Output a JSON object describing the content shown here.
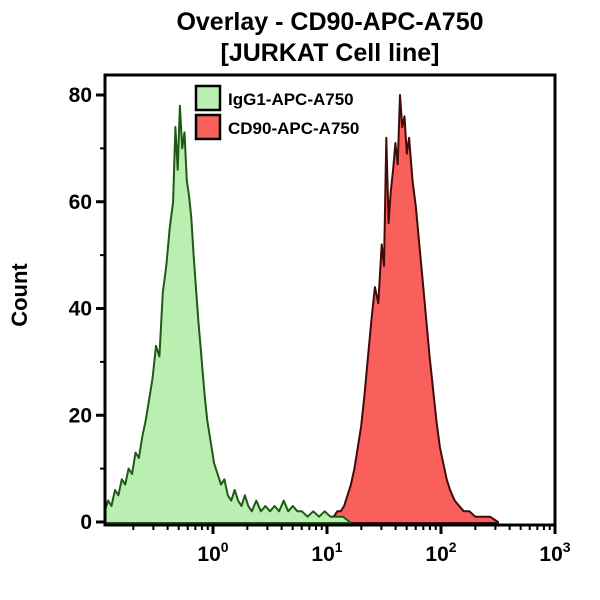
{
  "title": {
    "line1": "Overlay - CD90-APC-A750",
    "line2": "[JURKAT Cell line]"
  },
  "axes": {
    "y": {
      "label": "Count",
      "major_ticks": [
        0,
        20,
        40,
        60,
        80
      ],
      "minor_ticks": [
        10,
        30,
        50,
        70
      ]
    },
    "x": {
      "scale": "log10",
      "decade_exponents": [
        0,
        1,
        2,
        3
      ],
      "visible_range_log10": [
        -0.95,
        3
      ]
    }
  },
  "colors": {
    "axis": "#000000",
    "text": "#000000",
    "green_fill": "#b9f0b1",
    "green_stroke": "#1e5a14",
    "red_fill": "#f9605c",
    "red_stroke": "#3f0c0a"
  },
  "chart_data": {
    "type": "area",
    "subtype": "flow-cytometry-histogram-overlay",
    "title": "Overlay - CD90-APC-A750 [JURKAT Cell line]",
    "xlabel": "",
    "ylabel": "Count",
    "ylim": [
      0,
      84
    ],
    "xlim_log10": [
      -0.95,
      3
    ],
    "x_decade_ticks": [
      0,
      1,
      2,
      3
    ],
    "legend_position": "top-left-inside",
    "series": [
      {
        "name": "IgG1-APC-A750",
        "fill": "#b9f0b1",
        "stroke": "#1e5a14",
        "peak_log10x": -0.29,
        "peak_count": 78,
        "points_log10x_count": [
          [
            -0.95,
            2
          ],
          [
            -0.92,
            4
          ],
          [
            -0.89,
            3
          ],
          [
            -0.86,
            6
          ],
          [
            -0.83,
            5
          ],
          [
            -0.8,
            8
          ],
          [
            -0.77,
            7
          ],
          [
            -0.74,
            10
          ],
          [
            -0.71,
            9
          ],
          [
            -0.68,
            13
          ],
          [
            -0.65,
            12
          ],
          [
            -0.62,
            16
          ],
          [
            -0.59,
            19
          ],
          [
            -0.56,
            23
          ],
          [
            -0.53,
            27
          ],
          [
            -0.5,
            33
          ],
          [
            -0.47,
            31
          ],
          [
            -0.44,
            43
          ],
          [
            -0.41,
            48
          ],
          [
            -0.38,
            55
          ],
          [
            -0.35,
            60
          ],
          [
            -0.33,
            74
          ],
          [
            -0.31,
            66
          ],
          [
            -0.29,
            78
          ],
          [
            -0.27,
            70
          ],
          [
            -0.25,
            73
          ],
          [
            -0.23,
            64
          ],
          [
            -0.21,
            61
          ],
          [
            -0.19,
            57
          ],
          [
            -0.17,
            50
          ],
          [
            -0.15,
            44
          ],
          [
            -0.13,
            38
          ],
          [
            -0.11,
            33
          ],
          [
            -0.09,
            28
          ],
          [
            -0.07,
            23
          ],
          [
            -0.05,
            19
          ],
          [
            -0.02,
            15
          ],
          [
            0.01,
            11
          ],
          [
            0.04,
            9
          ],
          [
            0.07,
            7
          ],
          [
            0.1,
            8
          ],
          [
            0.13,
            5
          ],
          [
            0.16,
            4
          ],
          [
            0.19,
            6
          ],
          [
            0.22,
            4
          ],
          [
            0.25,
            3
          ],
          [
            0.28,
            5
          ],
          [
            0.31,
            3
          ],
          [
            0.34,
            2
          ],
          [
            0.38,
            4
          ],
          [
            0.42,
            2
          ],
          [
            0.46,
            3
          ],
          [
            0.5,
            2
          ],
          [
            0.54,
            3
          ],
          [
            0.58,
            2
          ],
          [
            0.62,
            4
          ],
          [
            0.66,
            2
          ],
          [
            0.7,
            3
          ],
          [
            0.74,
            2
          ],
          [
            0.78,
            2
          ],
          [
            0.83,
            1
          ],
          [
            0.88,
            2
          ],
          [
            0.93,
            1
          ],
          [
            0.98,
            2
          ],
          [
            1.03,
            1
          ],
          [
            1.08,
            1
          ],
          [
            1.14,
            1
          ],
          [
            1.2,
            0
          ]
        ]
      },
      {
        "name": "CD90-APC-A750",
        "fill": "#f9605c",
        "stroke": "#3f0c0a",
        "peak_log10x": 1.64,
        "peak_count": 80,
        "points_log10x_count": [
          [
            1.0,
            0
          ],
          [
            1.03,
            1
          ],
          [
            1.06,
            1
          ],
          [
            1.09,
            2
          ],
          [
            1.12,
            2
          ],
          [
            1.15,
            3
          ],
          [
            1.18,
            5
          ],
          [
            1.21,
            7
          ],
          [
            1.24,
            10
          ],
          [
            1.27,
            14
          ],
          [
            1.3,
            18
          ],
          [
            1.33,
            24
          ],
          [
            1.36,
            31
          ],
          [
            1.39,
            38
          ],
          [
            1.42,
            44
          ],
          [
            1.45,
            41
          ],
          [
            1.48,
            52
          ],
          [
            1.5,
            48
          ],
          [
            1.52,
            72
          ],
          [
            1.54,
            56
          ],
          [
            1.56,
            62
          ],
          [
            1.58,
            66
          ],
          [
            1.6,
            71
          ],
          [
            1.62,
            67
          ],
          [
            1.64,
            80
          ],
          [
            1.66,
            74
          ],
          [
            1.68,
            76
          ],
          [
            1.7,
            69
          ],
          [
            1.72,
            72
          ],
          [
            1.75,
            64
          ],
          [
            1.78,
            59
          ],
          [
            1.81,
            52
          ],
          [
            1.84,
            45
          ],
          [
            1.87,
            38
          ],
          [
            1.9,
            31
          ],
          [
            1.93,
            25
          ],
          [
            1.96,
            19
          ],
          [
            1.99,
            14
          ],
          [
            2.02,
            11
          ],
          [
            2.05,
            8
          ],
          [
            2.08,
            6
          ],
          [
            2.12,
            4
          ],
          [
            2.16,
            3
          ],
          [
            2.2,
            2
          ],
          [
            2.25,
            2
          ],
          [
            2.3,
            1
          ],
          [
            2.36,
            1
          ],
          [
            2.43,
            1
          ],
          [
            2.5,
            0
          ]
        ]
      }
    ]
  }
}
